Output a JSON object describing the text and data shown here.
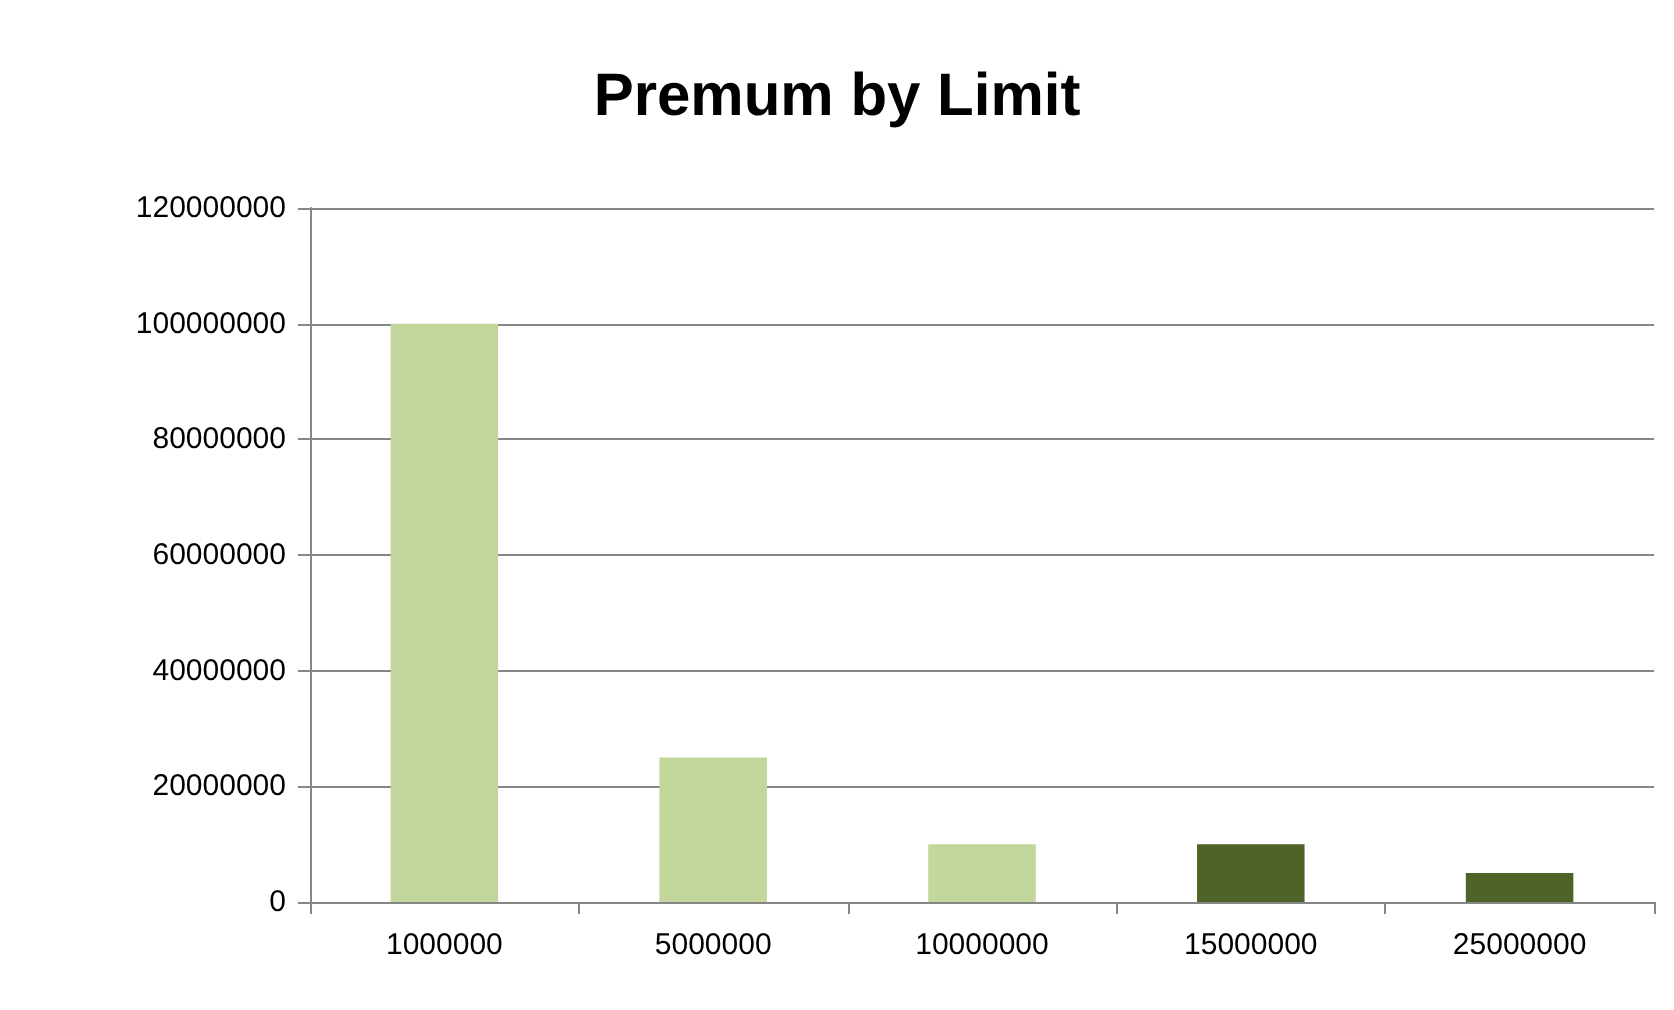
{
  "chart_data": {
    "type": "bar",
    "title": "Premum by Limit",
    "categories": [
      "1000000",
      "5000000",
      "10000000",
      "15000000",
      "25000000"
    ],
    "values": [
      100000000,
      25000000,
      10000000,
      10000000,
      5000000
    ],
    "colors": [
      "#c3d69b",
      "#c3d69b",
      "#c3d69b",
      "#4f6228",
      "#4f6228"
    ],
    "ylim": [
      0,
      120000000
    ],
    "yticks": [
      0,
      20000000,
      40000000,
      60000000,
      80000000,
      100000000,
      120000000
    ],
    "grid": "y"
  }
}
